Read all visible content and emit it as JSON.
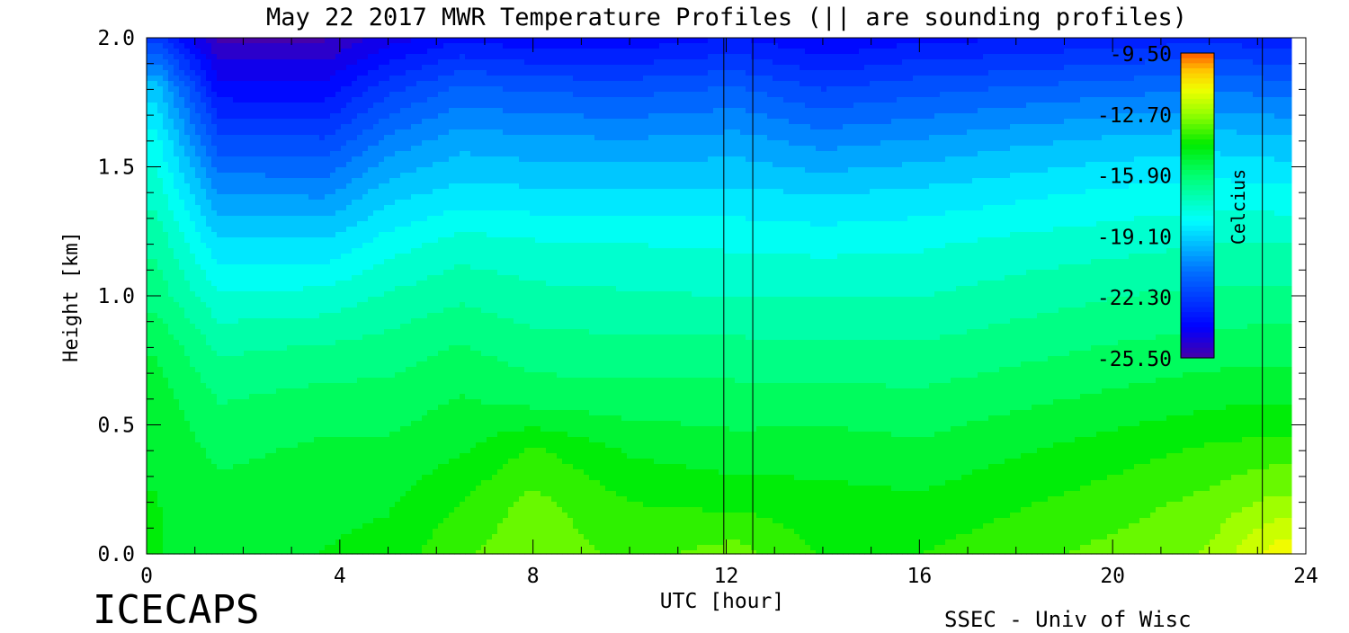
{
  "chart_data": {
    "type": "heatmap",
    "title": "May 22 2017 MWR Temperature Profiles (|| are sounding profiles)",
    "xlabel": "UTC [hour]",
    "ylabel": "Height [km]",
    "xlim": [
      0,
      24
    ],
    "ylim": [
      0,
      2.0
    ],
    "x_ticks": [
      "0",
      "4",
      "8",
      "12",
      "16",
      "20",
      "24"
    ],
    "y_ticks": [
      "0.0",
      "0.5",
      "1.0",
      "1.5",
      "2.0"
    ],
    "colorbar": {
      "label": "Celcius",
      "ticks": [
        "-9.50",
        "-12.70",
        "-15.90",
        "-19.10",
        "-22.30",
        "-25.50"
      ],
      "range": [
        -25.5,
        -9.5
      ]
    },
    "sounding_times_hours": [
      11.95,
      12.55,
      23.1
    ],
    "data_end_hour": 23.7,
    "heights_km": [
      0.0,
      0.2,
      0.4,
      0.6,
      0.8,
      1.0,
      1.2,
      1.4,
      1.6,
      1.8,
      2.0
    ],
    "times_hours": [
      0.2,
      1.5,
      3.7,
      5.0,
      6.5,
      8.0,
      10.0,
      12.2,
      14.0,
      16.0,
      18.0,
      20.0,
      22.0,
      23.4
    ],
    "temperature_c": [
      [
        -14.4,
        -14.4,
        -14.5,
        -14.7,
        -15.1,
        -15.9,
        -16.4,
        -17.1,
        -17.9,
        -19.0,
        -22.0
      ],
      [
        -14.6,
        -14.8,
        -15.2,
        -15.7,
        -16.4,
        -17.4,
        -18.6,
        -20.0,
        -21.6,
        -23.4,
        -25.0
      ],
      [
        -14.4,
        -14.6,
        -14.9,
        -15.4,
        -16.2,
        -17.3,
        -18.6,
        -20.1,
        -21.7,
        -23.4,
        -25.0
      ],
      [
        -14.2,
        -14.5,
        -14.9,
        -15.4,
        -16.0,
        -16.8,
        -17.8,
        -19.0,
        -20.4,
        -22.0,
        -24.0
      ],
      [
        -13.3,
        -13.8,
        -14.5,
        -15.0,
        -15.6,
        -16.4,
        -17.2,
        -18.5,
        -19.6,
        -21.0,
        -23.2
      ],
      [
        -12.7,
        -13.0,
        -13.7,
        -15.3,
        -16.0,
        -16.7,
        -17.4,
        -18.6,
        -19.8,
        -21.3,
        -23.5
      ],
      [
        -13.4,
        -13.8,
        -14.5,
        -15.4,
        -16.1,
        -16.8,
        -17.5,
        -18.6,
        -19.9,
        -21.4,
        -23.5
      ],
      [
        -12.9,
        -14.0,
        -14.8,
        -15.4,
        -16.1,
        -16.9,
        -17.6,
        -18.6,
        -19.7,
        -21.1,
        -23.0
      ],
      [
        -13.9,
        -14.2,
        -14.7,
        -15.4,
        -16.2,
        -16.9,
        -17.7,
        -18.8,
        -20.2,
        -21.8,
        -23.7
      ],
      [
        -13.8,
        -14.3,
        -14.9,
        -15.5,
        -16.2,
        -16.9,
        -17.6,
        -18.6,
        -19.9,
        -21.4,
        -23.2
      ],
      [
        -13.4,
        -13.9,
        -14.5,
        -15.2,
        -15.9,
        -16.6,
        -17.3,
        -18.3,
        -19.5,
        -21.1,
        -23.1
      ],
      [
        -13.0,
        -13.5,
        -14.1,
        -14.9,
        -15.6,
        -16.3,
        -17.1,
        -18.0,
        -19.2,
        -20.8,
        -22.8
      ],
      [
        -12.5,
        -13.0,
        -13.7,
        -14.6,
        -15.4,
        -16.1,
        -16.9,
        -17.8,
        -19.0,
        -20.6,
        -22.7
      ],
      [
        -11.0,
        -12.4,
        -13.5,
        -14.5,
        -15.3,
        -16.1,
        -16.9,
        -17.9,
        -19.2,
        -20.8,
        -22.8
      ]
    ]
  },
  "footer": {
    "left_logo": "ICECAPS",
    "right_credit": "SSEC - Univ of Wisc"
  }
}
